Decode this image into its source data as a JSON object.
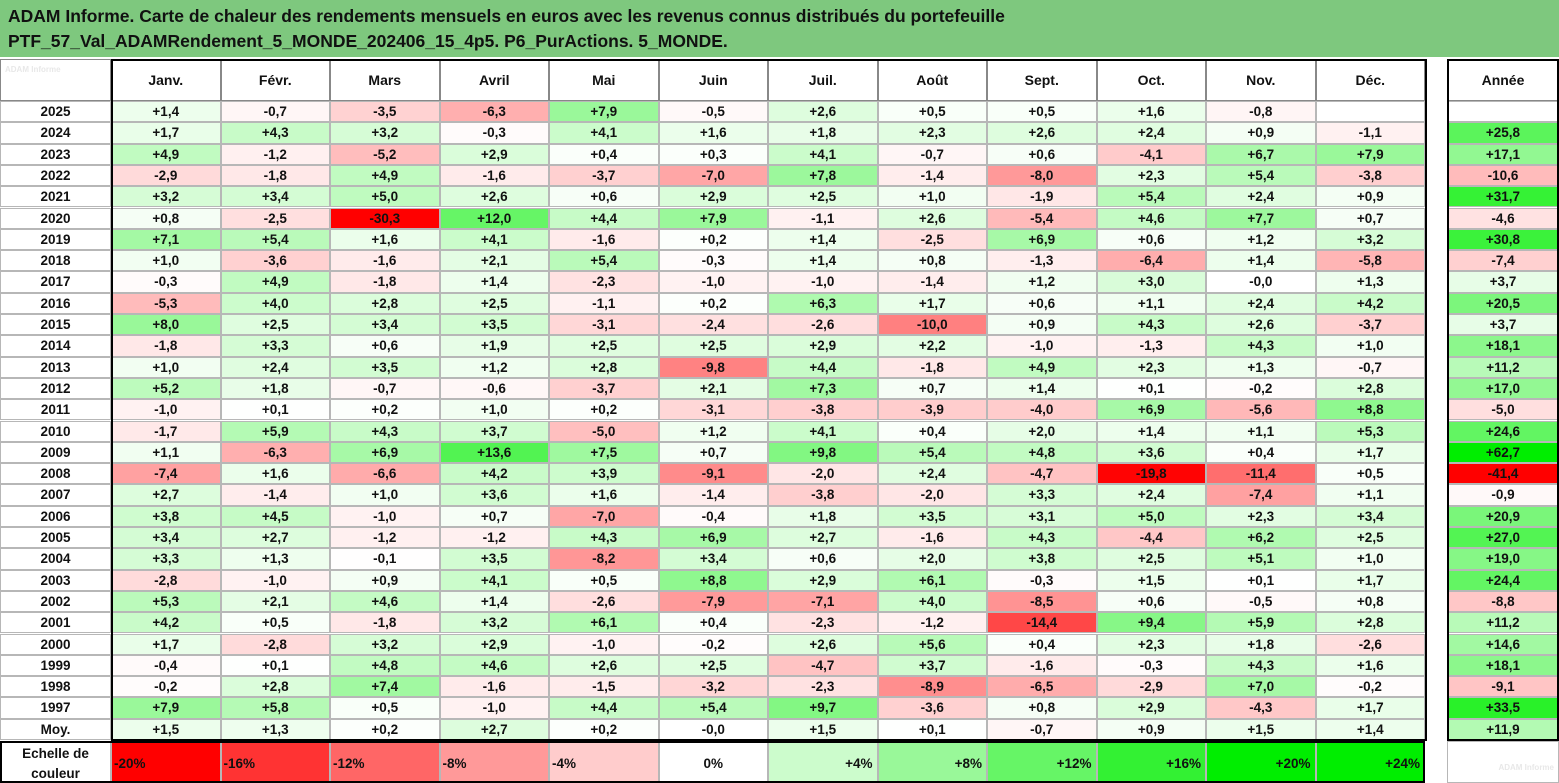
{
  "title": {
    "line1": "ADAM Informe. Carte de chaleur des rendements mensuels en euros avec les revenus connus distribués du portefeuille",
    "line2": "PTF_57_Val_ADAMRendement_5_MONDE_202406_15_4p5. P6_PurActions. 5_MONDE."
  },
  "corner_tag": "ADAM Informe",
  "scale_tag": "ADAM Informe",
  "chart_data": {
    "type": "heatmap",
    "columns": [
      "Janv.",
      "Févr.",
      "Mars",
      "Avril",
      "Mai",
      "Juin",
      "Juil.",
      "Août",
      "Sept.",
      "Oct.",
      "Nov.",
      "Déc."
    ],
    "year_column_label": "Année",
    "rows": [
      {
        "label": "2025",
        "values": [
          "+1,4",
          "-0,7",
          "-3,5",
          "-6,3",
          "+7,9",
          "-0,5",
          "+2,6",
          "+0,5",
          "+0,5",
          "+1,6",
          "-0,8",
          ""
        ],
        "year": ""
      },
      {
        "label": "2024",
        "values": [
          "+1,7",
          "+4,3",
          "+3,2",
          "-0,3",
          "+4,1",
          "+1,6",
          "+1,8",
          "+2,3",
          "+2,6",
          "+2,4",
          "+0,9",
          "-1,1"
        ],
        "year": "+25,8"
      },
      {
        "label": "2023",
        "values": [
          "+4,9",
          "-1,2",
          "-5,2",
          "+2,9",
          "+0,4",
          "+0,3",
          "+4,1",
          "-0,7",
          "+0,6",
          "-4,1",
          "+6,7",
          "+7,9"
        ],
        "year": "+17,1"
      },
      {
        "label": "2022",
        "values": [
          "-2,9",
          "-1,8",
          "+4,9",
          "-1,6",
          "-3,7",
          "-7,0",
          "+7,8",
          "-1,4",
          "-8,0",
          "+2,3",
          "+5,4",
          "-3,8"
        ],
        "year": "-10,6"
      },
      {
        "label": "2021",
        "values": [
          "+3,2",
          "+3,4",
          "+5,0",
          "+2,6",
          "+0,6",
          "+2,9",
          "+2,5",
          "+1,0",
          "-1,9",
          "+5,4",
          "+2,4",
          "+0,9"
        ],
        "year": "+31,7"
      },
      {
        "label": "2020",
        "values": [
          "+0,8",
          "-2,5",
          "-30,3",
          "+12,0",
          "+4,4",
          "+7,9",
          "-1,1",
          "+2,6",
          "-5,4",
          "+4,6",
          "+7,7",
          "+0,7"
        ],
        "year": "-4,6"
      },
      {
        "label": "2019",
        "values": [
          "+7,1",
          "+5,4",
          "+1,6",
          "+4,1",
          "-1,6",
          "+0,2",
          "+1,4",
          "-2,5",
          "+6,9",
          "+0,6",
          "+1,2",
          "+3,2"
        ],
        "year": "+30,8"
      },
      {
        "label": "2018",
        "values": [
          "+1,0",
          "-3,6",
          "-1,6",
          "+2,1",
          "+5,4",
          "-0,3",
          "+1,4",
          "+0,8",
          "-1,3",
          "-6,4",
          "+1,4",
          "-5,8"
        ],
        "year": "-7,4"
      },
      {
        "label": "2017",
        "values": [
          "-0,3",
          "+4,9",
          "-1,8",
          "+1,4",
          "-2,3",
          "-1,0",
          "-1,0",
          "-1,4",
          "+1,2",
          "+3,0",
          "-0,0",
          "+1,3"
        ],
        "year": "+3,7"
      },
      {
        "label": "2016",
        "values": [
          "-5,3",
          "+4,0",
          "+2,8",
          "+2,5",
          "-1,1",
          "+0,2",
          "+6,3",
          "+1,7",
          "+0,6",
          "+1,1",
          "+2,4",
          "+4,2"
        ],
        "year": "+20,5"
      },
      {
        "label": "2015",
        "values": [
          "+8,0",
          "+2,5",
          "+3,4",
          "+3,5",
          "-3,1",
          "-2,4",
          "-2,6",
          "-10,0",
          "+0,9",
          "+4,3",
          "+2,6",
          "-3,7"
        ],
        "year": "+3,7"
      },
      {
        "label": "2014",
        "values": [
          "-1,8",
          "+3,3",
          "+0,6",
          "+1,9",
          "+2,5",
          "+2,5",
          "+2,9",
          "+2,2",
          "-1,0",
          "-1,3",
          "+4,3",
          "+1,0"
        ],
        "year": "+18,1"
      },
      {
        "label": "2013",
        "values": [
          "+1,0",
          "+2,4",
          "+3,5",
          "+1,2",
          "+2,8",
          "-9,8",
          "+4,4",
          "-1,8",
          "+4,9",
          "+2,3",
          "+1,3",
          "-0,7"
        ],
        "year": "+11,2"
      },
      {
        "label": "2012",
        "values": [
          "+5,2",
          "+1,8",
          "-0,7",
          "-0,6",
          "-3,7",
          "+2,1",
          "+7,3",
          "+0,7",
          "+1,4",
          "+0,1",
          "-0,2",
          "+2,8"
        ],
        "year": "+17,0"
      },
      {
        "label": "2011",
        "values": [
          "-1,0",
          "+0,1",
          "+0,2",
          "+1,0",
          "+0,2",
          "-3,1",
          "-3,8",
          "-3,9",
          "-4,0",
          "+6,9",
          "-5,6",
          "+8,8"
        ],
        "year": "-5,0"
      },
      {
        "label": "2010",
        "values": [
          "-1,7",
          "+5,9",
          "+4,3",
          "+3,7",
          "-5,0",
          "+1,2",
          "+4,1",
          "+0,4",
          "+2,0",
          "+1,4",
          "+1,1",
          "+5,3"
        ],
        "year": "+24,6"
      },
      {
        "label": "2009",
        "values": [
          "+1,1",
          "-6,3",
          "+6,9",
          "+13,6",
          "+7,5",
          "+0,7",
          "+9,8",
          "+5,4",
          "+4,8",
          "+3,6",
          "+0,4",
          "+1,7"
        ],
        "year": "+62,7"
      },
      {
        "label": "2008",
        "values": [
          "-7,4",
          "+1,6",
          "-6,6",
          "+4,2",
          "+3,9",
          "-9,1",
          "-2,0",
          "+2,4",
          "-4,7",
          "-19,8",
          "-11,4",
          "+0,5"
        ],
        "year": "-41,4"
      },
      {
        "label": "2007",
        "values": [
          "+2,7",
          "-1,4",
          "+1,0",
          "+3,6",
          "+1,6",
          "-1,4",
          "-3,8",
          "-2,0",
          "+3,3",
          "+2,4",
          "-7,4",
          "+1,1"
        ],
        "year": "-0,9"
      },
      {
        "label": "2006",
        "values": [
          "+3,8",
          "+4,5",
          "-1,0",
          "+0,7",
          "-7,0",
          "-0,4",
          "+1,8",
          "+3,5",
          "+3,1",
          "+5,0",
          "+2,3",
          "+3,4"
        ],
        "year": "+20,9"
      },
      {
        "label": "2005",
        "values": [
          "+3,4",
          "+2,7",
          "-1,2",
          "-1,2",
          "+4,3",
          "+6,9",
          "+2,7",
          "-1,6",
          "+4,3",
          "-4,4",
          "+6,2",
          "+2,5"
        ],
        "year": "+27,0"
      },
      {
        "label": "2004",
        "values": [
          "+3,3",
          "+1,3",
          "-0,1",
          "+3,5",
          "-8,2",
          "+3,4",
          "+0,6",
          "+2,0",
          "+3,8",
          "+2,5",
          "+5,1",
          "+1,0"
        ],
        "year": "+19,0"
      },
      {
        "label": "2003",
        "values": [
          "-2,8",
          "-1,0",
          "+0,9",
          "+4,1",
          "+0,5",
          "+8,8",
          "+2,9",
          "+6,1",
          "-0,3",
          "+1,5",
          "+0,1",
          "+1,7"
        ],
        "year": "+24,4"
      },
      {
        "label": "2002",
        "values": [
          "+5,3",
          "+2,1",
          "+4,6",
          "+1,4",
          "-2,6",
          "-7,9",
          "-7,1",
          "+4,0",
          "-8,5",
          "+0,6",
          "-0,5",
          "+0,8"
        ],
        "year": "-8,8"
      },
      {
        "label": "2001",
        "values": [
          "+4,2",
          "+0,5",
          "-1,8",
          "+3,2",
          "+6,1",
          "+0,4",
          "-2,3",
          "-1,2",
          "-14,4",
          "+9,4",
          "+5,9",
          "+2,8"
        ],
        "year": "+11,2"
      },
      {
        "label": "2000",
        "values": [
          "+1,7",
          "-2,8",
          "+3,2",
          "+2,9",
          "-1,0",
          "-0,2",
          "+2,6",
          "+5,6",
          "+0,4",
          "+2,3",
          "+1,8",
          "-2,6"
        ],
        "year": "+14,6"
      },
      {
        "label": "1999",
        "values": [
          "-0,4",
          "+0,1",
          "+4,8",
          "+4,6",
          "+2,6",
          "+2,5",
          "-4,7",
          "+3,7",
          "-1,6",
          "-0,3",
          "+4,3",
          "+1,6"
        ],
        "year": "+18,1"
      },
      {
        "label": "1998",
        "values": [
          "-0,2",
          "+2,8",
          "+7,4",
          "-1,6",
          "-1,5",
          "-3,2",
          "-2,3",
          "-8,9",
          "-6,5",
          "-2,9",
          "+7,0",
          "-0,2"
        ],
        "year": "-9,1"
      },
      {
        "label": "1997",
        "values": [
          "+7,9",
          "+5,8",
          "+0,5",
          "-1,0",
          "+4,4",
          "+5,4",
          "+9,7",
          "-3,6",
          "+0,8",
          "+2,9",
          "-4,3",
          "+1,7"
        ],
        "year": "+33,5"
      },
      {
        "label": "Moy.",
        "values": [
          "+1,5",
          "+1,3",
          "+0,2",
          "+2,7",
          "+0,2",
          "-0,0",
          "+1,5",
          "+0,1",
          "-0,7",
          "+0,9",
          "+1,5",
          "+1,4"
        ],
        "year": "+11,9"
      }
    ],
    "scale": {
      "label": "Echelle de couleur",
      "stops": [
        "-20%",
        "-16%",
        "-12%",
        "-8%",
        "-4%",
        "0%",
        "+4%",
        "+8%",
        "+12%",
        "+16%",
        "+20%",
        "+24%"
      ]
    },
    "color_saturation": {
      "monthly": 20,
      "annual": 40
    },
    "colors": {
      "negative": "#ff0000",
      "positive": "#00ee00",
      "neutral": "#ffffff",
      "title_band": "#7ec87e"
    }
  }
}
